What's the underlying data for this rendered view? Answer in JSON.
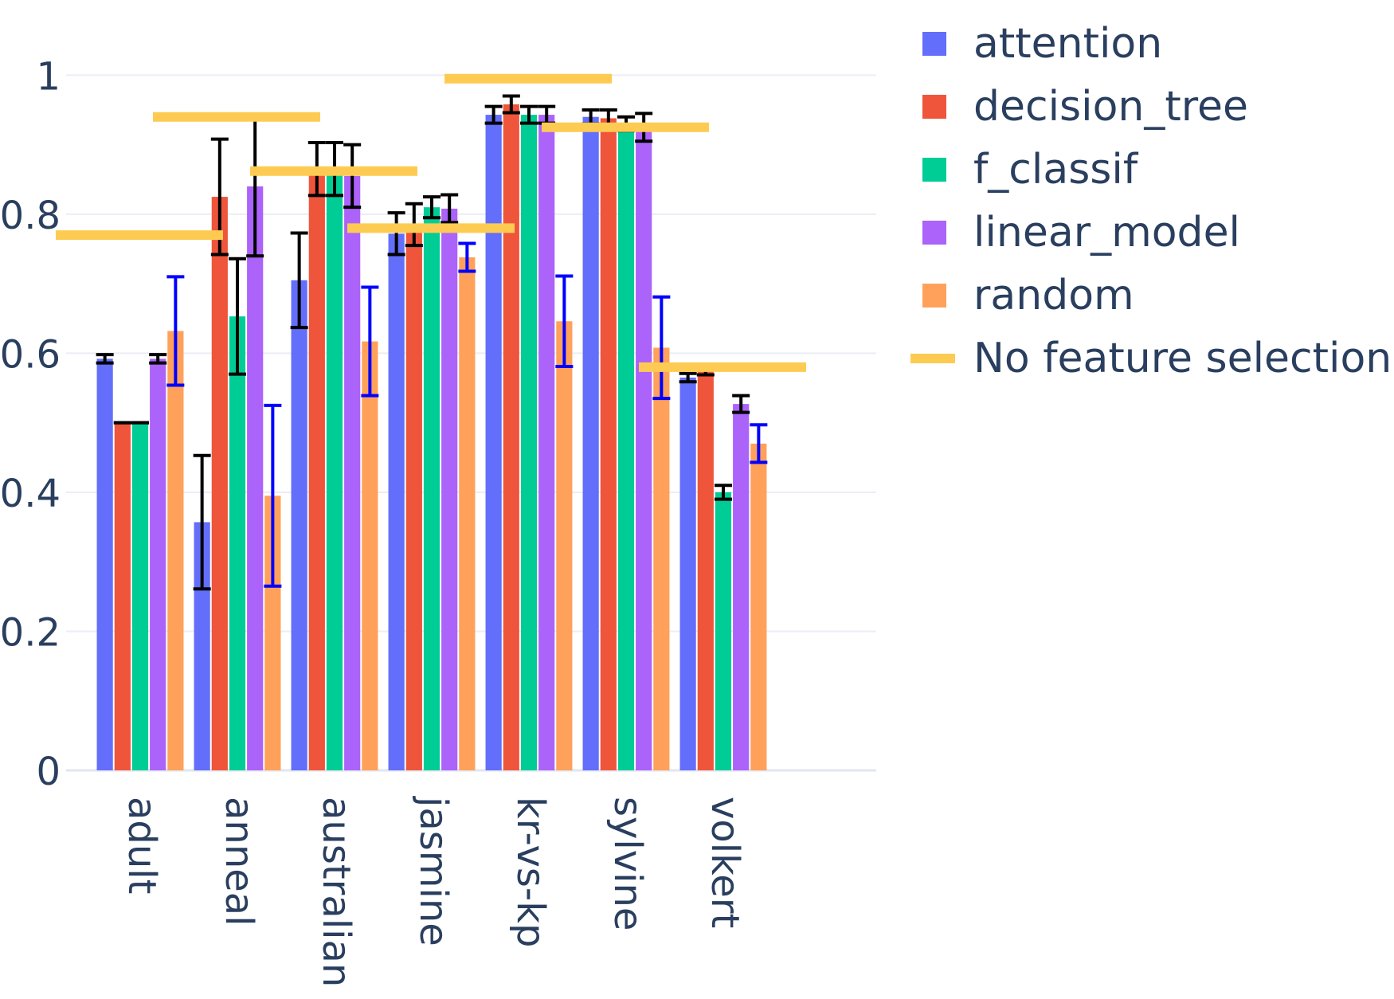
{
  "chart_data": {
    "type": "bar",
    "categories": [
      "adult",
      "anneal",
      "australian",
      "jasmine",
      "kr-vs-kp",
      "sylvine",
      "volkert"
    ],
    "ylim": [
      0,
      1.06
    ],
    "yticks": [
      0,
      0.2,
      0.4,
      0.6,
      0.8,
      1
    ],
    "ytick_labels": [
      "0",
      "0.2",
      "0.4",
      "0.6",
      "0.8",
      "1"
    ],
    "grid": true,
    "legend_position": "top-right",
    "series": [
      {
        "name": "attention",
        "color": "#636efa",
        "error_color": "#000000",
        "values": [
          0.592,
          0.357,
          0.705,
          0.772,
          0.943,
          0.94,
          0.565
        ],
        "errors": [
          0.006,
          0.096,
          0.068,
          0.03,
          0.012,
          0.01,
          0.006
        ]
      },
      {
        "name": "decision_tree",
        "color": "#ef553b",
        "error_color": "#000000",
        "values": [
          0.5,
          0.825,
          0.865,
          0.785,
          0.958,
          0.938,
          0.575
        ],
        "errors": [
          0.0,
          0.083,
          0.038,
          0.03,
          0.012,
          0.012,
          0.006
        ]
      },
      {
        "name": "f_classif",
        "color": "#00cc96",
        "error_color": "#000000",
        "values": [
          0.5,
          0.653,
          0.865,
          0.81,
          0.943,
          0.93,
          0.4
        ],
        "errors": [
          0.0,
          0.083,
          0.038,
          0.015,
          0.012,
          0.01,
          0.01
        ]
      },
      {
        "name": "linear_model",
        "color": "#ab63fa",
        "error_color": "#000000",
        "values": [
          0.592,
          0.84,
          0.855,
          0.808,
          0.943,
          0.925,
          0.527
        ],
        "errors": [
          0.006,
          0.1,
          0.045,
          0.02,
          0.012,
          0.02,
          0.012
        ]
      },
      {
        "name": "random",
        "color": "#ffa15a",
        "error_color": "#0000ff",
        "values": [
          0.632,
          0.395,
          0.617,
          0.738,
          0.646,
          0.608,
          0.47
        ],
        "errors": [
          0.078,
          0.13,
          0.078,
          0.02,
          0.065,
          0.073,
          0.027
        ]
      }
    ],
    "baseline": {
      "name": "No feature selection",
      "color": "#fecb52",
      "values": [
        0.77,
        0.94,
        0.862,
        0.78,
        0.995,
        0.925,
        0.58
      ]
    }
  }
}
